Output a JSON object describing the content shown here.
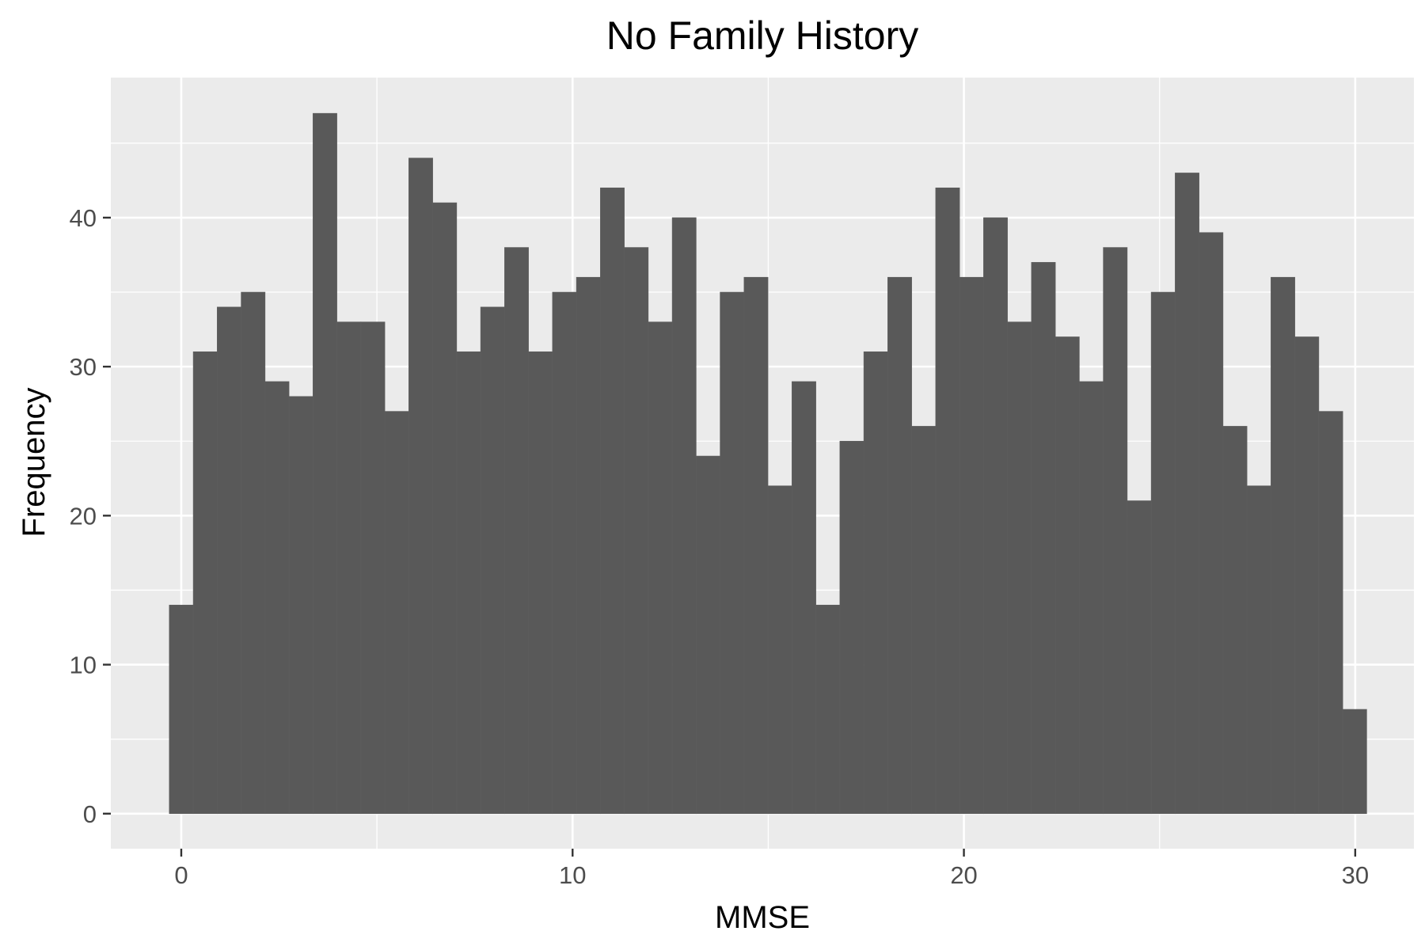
{
  "chart_data": {
    "type": "bar",
    "subtype": "histogram",
    "title": "No Family History",
    "xlabel": "MMSE",
    "ylabel": "Frequency",
    "xlim": [
      -1.8,
      31.5
    ],
    "ylim": [
      -2.35,
      49.4
    ],
    "x_ticks": [
      0,
      10,
      20,
      30
    ],
    "y_ticks": [
      0,
      10,
      20,
      30,
      40
    ],
    "x_minor_gridlines": [
      5,
      15,
      25
    ],
    "y_minor_gridlines": [
      5,
      15,
      25,
      35,
      45
    ],
    "bin_width": 0.612,
    "bin_start": -0.306,
    "values": [
      14,
      31,
      34,
      35,
      29,
      28,
      47,
      33,
      33,
      27,
      44,
      41,
      31,
      34,
      38,
      31,
      35,
      36,
      42,
      38,
      33,
      40,
      24,
      35,
      36,
      22,
      29,
      14,
      25,
      31,
      36,
      26,
      42,
      36,
      40,
      33,
      37,
      32,
      29,
      38,
      21,
      35,
      43,
      39,
      26,
      22,
      36,
      32,
      27,
      7
    ],
    "grid": true,
    "legend": "none",
    "colors": {
      "bar_fill": "#595959",
      "panel_background": "#ebebeb",
      "gridline": "#ffffff",
      "tick": "#333333",
      "tick_label": "#4d4d4d",
      "text": "#000000"
    }
  }
}
